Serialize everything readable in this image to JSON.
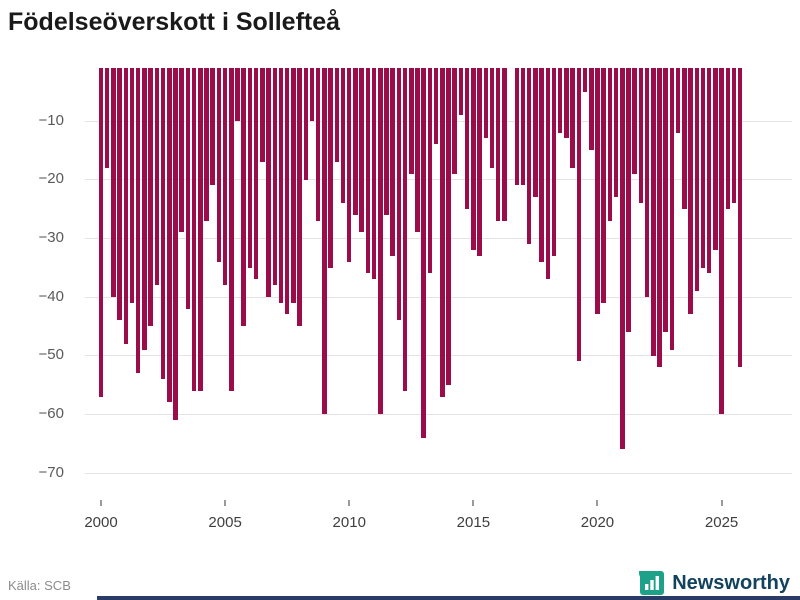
{
  "page": {
    "title": "Födelseöverskott i Sollefteå",
    "source": "Källa: SCB",
    "brand_name": "Newsworthy"
  },
  "colors": {
    "bar": "#9b0c4b",
    "grid": "#e4e4e4",
    "y_axis_text": "#5a5a5a",
    "x_axis_text": "#3f3f3f",
    "tick_mark": "#9a9a9a",
    "title_text": "#1a1a1a",
    "source_text": "#8c8c8c",
    "logo_teal": "#1da189",
    "logo_text": "#12425e",
    "bottom_strip": "#2a3b66"
  },
  "chart_data": {
    "type": "bar",
    "title": "Födelseöverskott i Sollefteå",
    "x": [
      "2000 Q1",
      "2000 Q2",
      "2000 Q3",
      "2000 Q4",
      "2001 Q1",
      "2001 Q2",
      "2001 Q3",
      "2001 Q4",
      "2002 Q1",
      "2002 Q2",
      "2002 Q3",
      "2002 Q4",
      "2003 Q1",
      "2003 Q2",
      "2003 Q3",
      "2003 Q4",
      "2004 Q1",
      "2004 Q2",
      "2004 Q3",
      "2004 Q4",
      "2005 Q1",
      "2005 Q2",
      "2005 Q3",
      "2005 Q4",
      "2006 Q1",
      "2006 Q2",
      "2006 Q3",
      "2006 Q4",
      "2007 Q1",
      "2007 Q2",
      "2007 Q3",
      "2007 Q4",
      "2008 Q1",
      "2008 Q2",
      "2008 Q3",
      "2008 Q4",
      "2009 Q1",
      "2009 Q2",
      "2009 Q3",
      "2009 Q4",
      "2010 Q1",
      "2010 Q2",
      "2010 Q3",
      "2010 Q4",
      "2011 Q1",
      "2011 Q2",
      "2011 Q3",
      "2011 Q4",
      "2012 Q1",
      "2012 Q2",
      "2012 Q3",
      "2012 Q4",
      "2013 Q1",
      "2013 Q2",
      "2013 Q3",
      "2013 Q4",
      "2014 Q1",
      "2014 Q2",
      "2014 Q3",
      "2014 Q4",
      "2015 Q1",
      "2015 Q2",
      "2015 Q3",
      "2015 Q4",
      "2016 Q1",
      "2016 Q2",
      "2016 Q3",
      "2016 Q4",
      "2017 Q1",
      "2017 Q2",
      "2017 Q3",
      "2017 Q4",
      "2018 Q1",
      "2018 Q2",
      "2018 Q3",
      "2018 Q4",
      "2019 Q1",
      "2019 Q2",
      "2019 Q3",
      "2019 Q4",
      "2020 Q1",
      "2020 Q2",
      "2020 Q3",
      "2020 Q4",
      "2021 Q1",
      "2021 Q2",
      "2021 Q3",
      "2021 Q4",
      "2022 Q1",
      "2022 Q2",
      "2022 Q3",
      "2022 Q4",
      "2023 Q1",
      "2023 Q2",
      "2023 Q3",
      "2023 Q4",
      "2024 Q1",
      "2024 Q2",
      "2024 Q3",
      "2024 Q4",
      "2025 Q1",
      "2025 Q2",
      "2025 Q3",
      "2025 Q4"
    ],
    "values": [
      -57,
      -18,
      -40,
      -44,
      -48,
      -41,
      -53,
      -49,
      -45,
      -38,
      -54,
      -58,
      -61,
      -29,
      -42,
      -56,
      -56,
      -27,
      -21,
      -34,
      -38,
      -56,
      -10,
      -45,
      -35,
      -37,
      -17,
      -40,
      -38,
      -41,
      -43,
      -41,
      -45,
      -20,
      -10,
      -27,
      -60,
      -35,
      -17,
      -24,
      -34,
      -26,
      -29,
      -36,
      -37,
      -60,
      -26,
      -33,
      -44,
      -56,
      -19,
      -29,
      -64,
      -36,
      -14,
      -57,
      -55,
      -19,
      -9,
      -25,
      -32,
      -33,
      -13,
      -18,
      -27,
      -27,
      -1,
      -21,
      -21,
      -31,
      -23,
      -34,
      -37,
      -33,
      -12,
      -13,
      -18,
      -51,
      -5,
      -15,
      -43,
      -41,
      -27,
      -23,
      -66,
      -46,
      -19,
      -24,
      -40,
      -50,
      -52,
      -46,
      -49,
      -12,
      -25,
      -43,
      -39,
      -35,
      -36,
      -32,
      -60,
      -25,
      -24,
      -52
    ],
    "xlabel": "",
    "ylabel": "",
    "ylim": [
      -72,
      -1
    ],
    "yticks": [
      -10,
      -20,
      -30,
      -40,
      -50,
      -60,
      -70
    ],
    "xtick_years": [
      2000,
      2005,
      2010,
      2015,
      2020,
      2025
    ],
    "grid": true,
    "legend": "none"
  }
}
